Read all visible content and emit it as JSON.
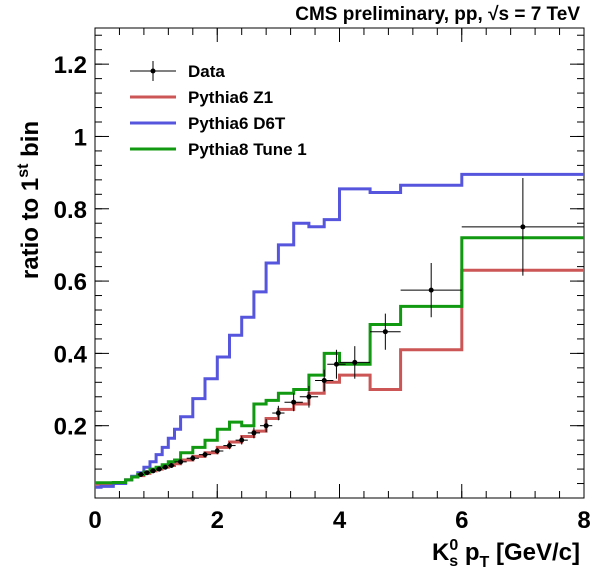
{
  "chart_data": {
    "type": "line",
    "title": "CMS preliminary, pp, √s = 7 TeV",
    "xlabel": "K_s^0 p_T [GeV/c]",
    "ylabel": "ratio to 1^st bin",
    "xlim": [
      0,
      8
    ],
    "ylim": [
      0,
      1.3
    ],
    "x_ticks": [
      0,
      2,
      4,
      6,
      8
    ],
    "x_tick_labels": [
      "0",
      "2",
      "4",
      "6",
      "8"
    ],
    "y_ticks": [
      0.2,
      0.4,
      0.6,
      0.8,
      1.0,
      1.2
    ],
    "y_tick_labels": [
      "0.2",
      "0.4",
      "0.6",
      "0.8",
      "1",
      "1.2"
    ],
    "legend_position": "top-left",
    "legend": [
      "Data",
      "Pythia6 Z1",
      "Pythia6 D6T",
      "Pythia8 Tune 1"
    ],
    "series": [
      {
        "name": "Data",
        "type": "points-with-errors",
        "color": "#000000",
        "points": [
          {
            "x": 0.75,
            "y": 0.065,
            "xerr": 0.05,
            "yerr": 0.005
          },
          {
            "x": 0.85,
            "y": 0.07,
            "xerr": 0.05,
            "yerr": 0.005
          },
          {
            "x": 0.95,
            "y": 0.075,
            "xerr": 0.05,
            "yerr": 0.005
          },
          {
            "x": 1.05,
            "y": 0.08,
            "xerr": 0.05,
            "yerr": 0.006
          },
          {
            "x": 1.15,
            "y": 0.085,
            "xerr": 0.05,
            "yerr": 0.006
          },
          {
            "x": 1.25,
            "y": 0.09,
            "xerr": 0.05,
            "yerr": 0.006
          },
          {
            "x": 1.4,
            "y": 0.1,
            "xerr": 0.1,
            "yerr": 0.007
          },
          {
            "x": 1.6,
            "y": 0.11,
            "xerr": 0.1,
            "yerr": 0.008
          },
          {
            "x": 1.8,
            "y": 0.12,
            "xerr": 0.1,
            "yerr": 0.008
          },
          {
            "x": 2.0,
            "y": 0.13,
            "xerr": 0.1,
            "yerr": 0.009
          },
          {
            "x": 2.2,
            "y": 0.145,
            "xerr": 0.1,
            "yerr": 0.01
          },
          {
            "x": 2.4,
            "y": 0.16,
            "xerr": 0.1,
            "yerr": 0.012
          },
          {
            "x": 2.6,
            "y": 0.18,
            "xerr": 0.1,
            "yerr": 0.015
          },
          {
            "x": 2.8,
            "y": 0.2,
            "xerr": 0.1,
            "yerr": 0.018
          },
          {
            "x": 3.0,
            "y": 0.235,
            "xerr": 0.1,
            "yerr": 0.02
          },
          {
            "x": 3.25,
            "y": 0.265,
            "xerr": 0.15,
            "yerr": 0.025
          },
          {
            "x": 3.5,
            "y": 0.28,
            "xerr": 0.15,
            "yerr": 0.03
          },
          {
            "x": 3.75,
            "y": 0.325,
            "xerr": 0.15,
            "yerr": 0.03
          },
          {
            "x": 3.95,
            "y": 0.37,
            "xerr": 0.15,
            "yerr": 0.04
          },
          {
            "x": 4.25,
            "y": 0.375,
            "xerr": 0.25,
            "yerr": 0.045
          },
          {
            "x": 4.75,
            "y": 0.46,
            "xerr": 0.25,
            "yerr": 0.05
          },
          {
            "x": 5.5,
            "y": 0.575,
            "xerr": 0.5,
            "yerr": 0.075
          },
          {
            "x": 7.0,
            "y": 0.75,
            "xerr": 1.0,
            "yerr": 0.135
          }
        ]
      },
      {
        "name": "Pythia6 Z1",
        "type": "step",
        "color": "#cc5555",
        "edges": [
          0,
          0.1,
          0.3,
          0.5,
          0.6,
          0.7,
          0.8,
          0.9,
          1.0,
          1.1,
          1.2,
          1.3,
          1.4,
          1.6,
          1.8,
          2.0,
          2.2,
          2.4,
          2.6,
          2.8,
          3.0,
          3.25,
          3.5,
          3.75,
          4.0,
          4.5,
          5.0,
          6.0,
          8.0
        ],
        "values": [
          0.038,
          0.038,
          0.04,
          0.05,
          0.058,
          0.062,
          0.068,
          0.075,
          0.08,
          0.085,
          0.09,
          0.095,
          0.105,
          0.115,
          0.125,
          0.14,
          0.155,
          0.17,
          0.185,
          0.22,
          0.245,
          0.26,
          0.29,
          0.32,
          0.34,
          0.3,
          0.41,
          0.63
        ]
      },
      {
        "name": "Pythia6 D6T",
        "type": "step",
        "color": "#5555dd",
        "edges": [
          0,
          0.1,
          0.3,
          0.5,
          0.6,
          0.7,
          0.8,
          0.9,
          1.0,
          1.1,
          1.2,
          1.3,
          1.4,
          1.6,
          1.8,
          2.0,
          2.2,
          2.4,
          2.6,
          2.8,
          3.0,
          3.25,
          3.5,
          3.75,
          4.0,
          4.5,
          5.0,
          6.0,
          8.0
        ],
        "values": [
          0.03,
          0.032,
          0.04,
          0.05,
          0.06,
          0.07,
          0.085,
          0.1,
          0.12,
          0.14,
          0.165,
          0.19,
          0.225,
          0.275,
          0.33,
          0.39,
          0.45,
          0.5,
          0.57,
          0.65,
          0.7,
          0.76,
          0.75,
          0.77,
          0.855,
          0.845,
          0.865,
          0.895
        ]
      },
      {
        "name": "Pythia8 Tune 1",
        "type": "step",
        "color": "#119911",
        "edges": [
          0,
          0.1,
          0.3,
          0.5,
          0.6,
          0.7,
          0.8,
          0.9,
          1.0,
          1.1,
          1.2,
          1.3,
          1.4,
          1.6,
          1.8,
          2.0,
          2.2,
          2.4,
          2.6,
          2.8,
          3.0,
          3.25,
          3.5,
          3.75,
          4.0,
          4.5,
          5.0,
          6.0,
          8.0
        ],
        "values": [
          0.042,
          0.042,
          0.043,
          0.05,
          0.058,
          0.065,
          0.072,
          0.08,
          0.085,
          0.092,
          0.1,
          0.105,
          0.125,
          0.14,
          0.16,
          0.19,
          0.21,
          0.2,
          0.26,
          0.27,
          0.29,
          0.3,
          0.34,
          0.4,
          0.37,
          0.48,
          0.53,
          0.72
        ]
      }
    ]
  }
}
